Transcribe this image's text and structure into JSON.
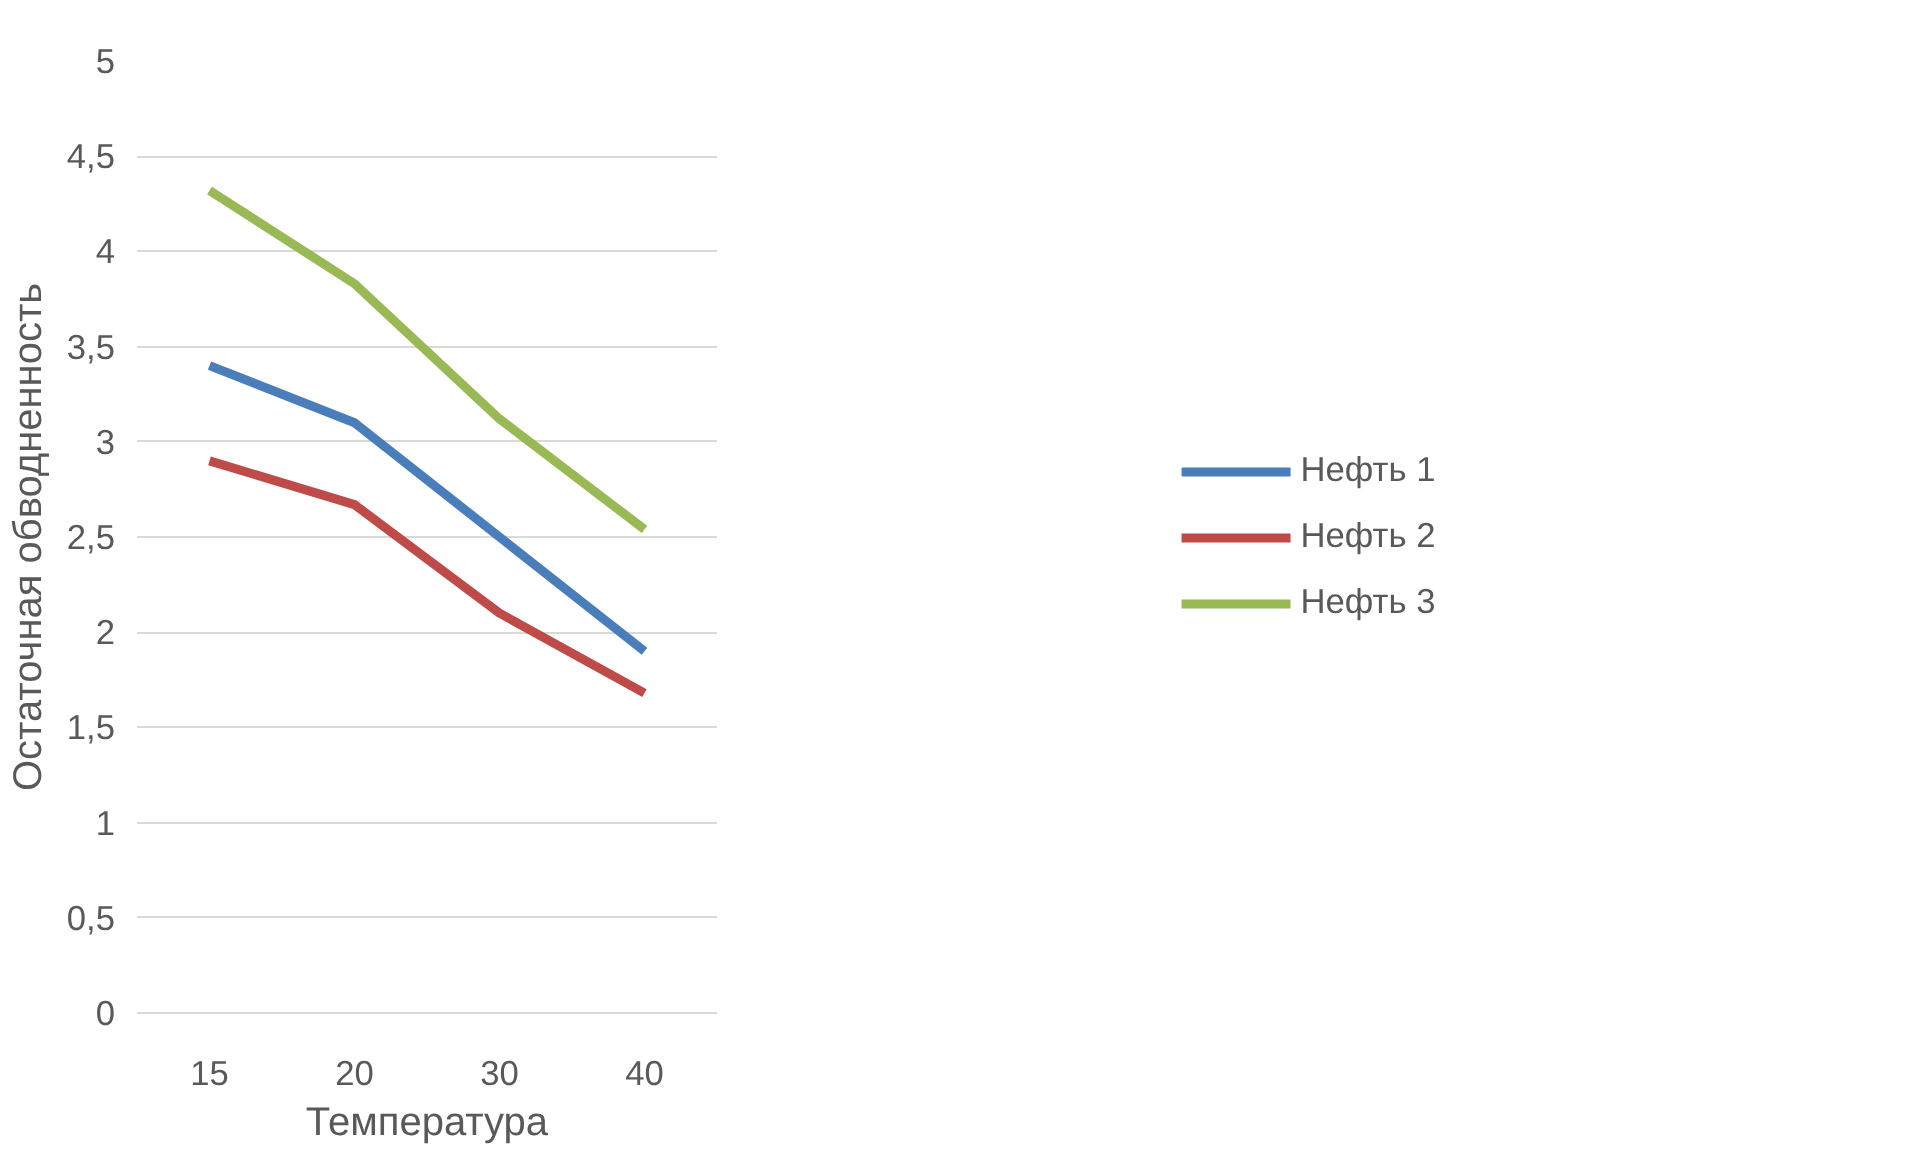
{
  "chart_data": {
    "type": "line",
    "xlabel": "Температура",
    "ylabel": "Остаточная обводненность",
    "categories": [
      "15",
      "20",
      "30",
      "40"
    ],
    "series": [
      {
        "name": "Нефть 1",
        "color": "#4a7ebb",
        "values": [
          3.4,
          3.1,
          2.5,
          1.9
        ]
      },
      {
        "name": "Нефть 2",
        "color": "#be4b48",
        "values": [
          2.9,
          2.67,
          2.1,
          1.68
        ]
      },
      {
        "name": "Нефть 3",
        "color": "#98b954",
        "values": [
          4.32,
          3.83,
          3.12,
          2.54
        ]
      }
    ],
    "ylim": [
      0,
      5
    ],
    "yticks": [
      0,
      {
        "value": 0.5,
        "label": "0,5"
      },
      1,
      {
        "value": 1.5,
        "label": "1,5"
      },
      2,
      {
        "value": 2.5,
        "label": "2,5"
      },
      3,
      {
        "value": 3.5,
        "label": "3,5"
      },
      4,
      {
        "value": 4.5,
        "label": "4,5"
      },
      5
    ],
    "grid": "y",
    "legend": "right",
    "marker": "none",
    "line_style": "solid"
  }
}
